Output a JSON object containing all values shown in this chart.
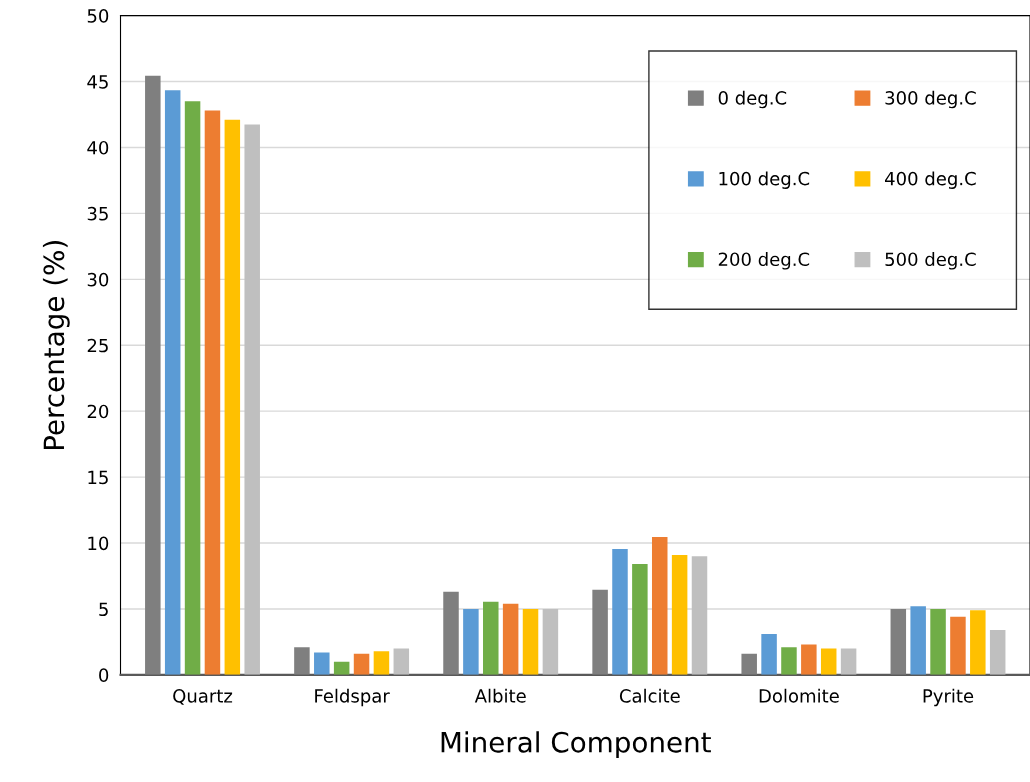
{
  "chart_data": {
    "type": "bar",
    "xlabel": "Mineral Component",
    "ylabel": "Percentage (%)",
    "categories": [
      "Quartz",
      "Feldspar",
      "Albite",
      "Calcite",
      "Dolomite",
      "Pyrite"
    ],
    "series": [
      {
        "name": "0 deg.C",
        "color": "#7f7f7f",
        "values": [
          45.45,
          2.1,
          6.3,
          6.45,
          1.6,
          5.0
        ]
      },
      {
        "name": "100 deg.C",
        "color": "#5b9bd5",
        "values": [
          44.35,
          1.7,
          5.0,
          9.55,
          3.1,
          5.2
        ]
      },
      {
        "name": "200 deg.C",
        "color": "#70ad47",
        "values": [
          43.5,
          1.0,
          5.55,
          8.4,
          2.1,
          5.0
        ]
      },
      {
        "name": "300 deg.C",
        "color": "#ed7d31",
        "values": [
          42.8,
          1.6,
          5.4,
          10.45,
          2.3,
          4.4
        ]
      },
      {
        "name": "400 deg.C",
        "color": "#ffc000",
        "values": [
          42.1,
          1.8,
          5.0,
          9.1,
          2.0,
          4.9
        ]
      },
      {
        "name": "500 deg.C",
        "color": "#bfbfbf",
        "values": [
          41.75,
          2.0,
          5.0,
          9.0,
          2.0,
          3.4
        ]
      }
    ],
    "ylim": [
      0,
      50
    ],
    "yticks": [
      0,
      5,
      10,
      15,
      20,
      25,
      30,
      35,
      40,
      45,
      50
    ],
    "grid": "y",
    "legend": "top right"
  }
}
